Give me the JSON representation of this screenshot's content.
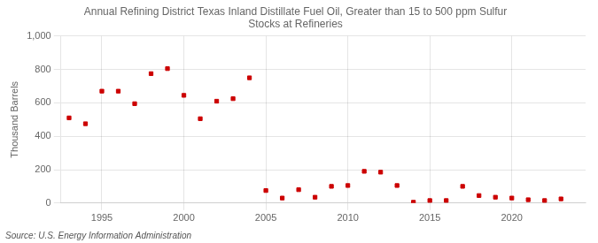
{
  "chart_data": {
    "type": "scatter",
    "title": "Annual Refining District Texas Inland Distillate Fuel Oil, Greater than 15 to 500 ppm Sulfur\nStocks at Refineries",
    "ylabel": "Thousand Barrels",
    "annotation": "Source: U.S. Energy Information Administration",
    "x": [
      1993,
      1994,
      1995,
      1996,
      1997,
      1998,
      1999,
      2000,
      2001,
      2002,
      2003,
      2004,
      2005,
      2006,
      2007,
      2008,
      2009,
      2010,
      2011,
      2012,
      2013,
      2014,
      2015,
      2016,
      2017,
      2018,
      2019,
      2020,
      2021,
      2022,
      2023
    ],
    "values": [
      510,
      475,
      670,
      670,
      595,
      775,
      805,
      645,
      505,
      610,
      625,
      750,
      75,
      30,
      80,
      35,
      100,
      105,
      190,
      185,
      105,
      5,
      15,
      15,
      100,
      45,
      35,
      30,
      20,
      15,
      25
    ],
    "color": "#cc0000",
    "marker": "square",
    "xlim": [
      1992.5,
      2024.5
    ],
    "xticks": [
      1995,
      2000,
      2005,
      2010,
      2015,
      2020
    ],
    "ylim": [
      0,
      1000
    ],
    "yticks": [
      0,
      200,
      400,
      600,
      800,
      {
        "value": 1000,
        "label": "1,000"
      }
    ],
    "grid": true
  }
}
